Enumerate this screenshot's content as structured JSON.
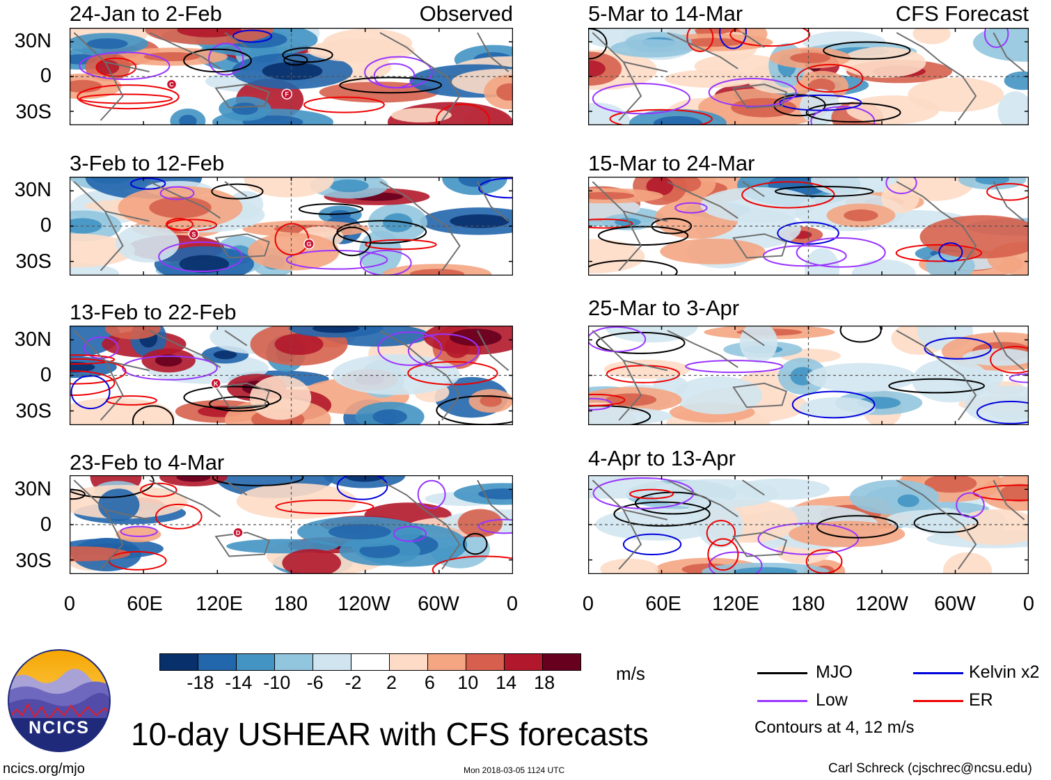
{
  "headers": {
    "left_tag": "Observed",
    "right_tag": "CFS Forecast"
  },
  "panels": {
    "observed": [
      {
        "title": "24-Jan to 2-Feb"
      },
      {
        "title": "3-Feb to 12-Feb"
      },
      {
        "title": "13-Feb to 22-Feb"
      },
      {
        "title": "23-Feb to 4-Mar"
      }
    ],
    "forecast": [
      {
        "title": "5-Mar to 14-Mar"
      },
      {
        "title": "15-Mar to 24-Mar"
      },
      {
        "title": "25-Mar to 3-Apr"
      },
      {
        "title": "4-Apr to 13-Apr"
      }
    ]
  },
  "axes": {
    "lat_labels": [
      "30N",
      "0",
      "30S"
    ],
    "lon_labels": [
      "0",
      "60E",
      "120E",
      "180",
      "120W",
      "60W",
      "0"
    ]
  },
  "storm_markers": [
    {
      "panel": 0,
      "letter": "C"
    },
    {
      "panel": 0,
      "letter": "F"
    },
    {
      "panel": 1,
      "letter": "S"
    },
    {
      "panel": 1,
      "letter": "G"
    },
    {
      "panel": 2,
      "letter": "K"
    },
    {
      "panel": 3,
      "letter": "D"
    }
  ],
  "colorbar": {
    "ticks": [
      "-18",
      "-14",
      "-10",
      "-6",
      "-2",
      "2",
      "6",
      "10",
      "14",
      "18"
    ],
    "colors": [
      "#08306b",
      "#2266ac",
      "#4393c3",
      "#92c5de",
      "#d1e5f0",
      "#ffffff",
      "#fddbc7",
      "#f4a582",
      "#d6604d",
      "#b2182b",
      "#67001f"
    ],
    "units": "m/s"
  },
  "legend": {
    "mjo": {
      "label": "MJO",
      "color": "#000000"
    },
    "kelvin": {
      "label": "Kelvin x2",
      "color": "#0000dd"
    },
    "low": {
      "label": "Low",
      "color": "#9933ff"
    },
    "er": {
      "label": "ER",
      "color": "#ee0000"
    },
    "note": "Contours at 4, 12 m/s"
  },
  "logo": {
    "text": "NCICS"
  },
  "main_title": "10-day USHEAR with CFS forecasts",
  "footer": {
    "site": "ncics.org/mjo",
    "timestamp": "Mon 2018-03-05 1124 UTC",
    "credit": "Carl Schreck (cjschrec@ncsu.edu)"
  }
}
